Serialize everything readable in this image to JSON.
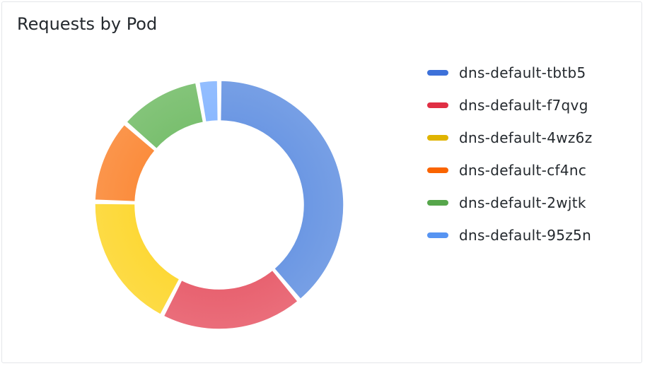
{
  "panel": {
    "title": "Requests by Pod"
  },
  "chart_data": {
    "type": "pie",
    "variant": "donut",
    "title": "Requests by Pod",
    "legend_position": "right",
    "series": [
      {
        "name": "dns-default-tbtb5",
        "value": 38.9,
        "color": "#3d71d9",
        "fill": "#6b97e3"
      },
      {
        "name": "dns-default-f7qvg",
        "value": 18.7,
        "color": "#e02f44",
        "fill": "#e8616f"
      },
      {
        "name": "dns-default-4wz6z",
        "value": 17.8,
        "color": "#e0b400",
        "fill": "#fdd835"
      },
      {
        "name": "dns-default-cf4nc",
        "value": 11.0,
        "color": "#fa6400",
        "fill": "#fb8c3c"
      },
      {
        "name": "dns-default-2wjtk",
        "value": 10.8,
        "color": "#56a64b",
        "fill": "#79bf6e"
      },
      {
        "name": "dns-default-95z5n",
        "value": 2.8,
        "color": "#5794f2",
        "fill": "#8ab8ff"
      }
    ]
  }
}
